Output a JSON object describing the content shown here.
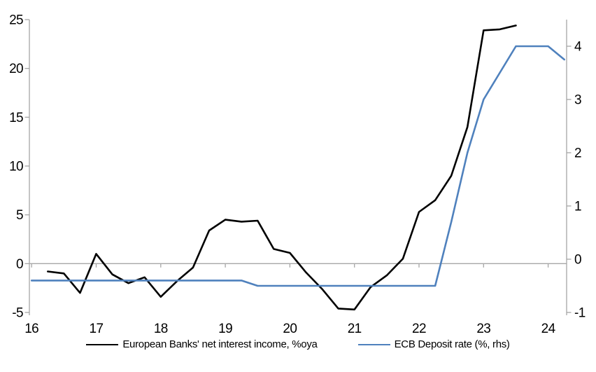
{
  "chart_data": {
    "type": "line",
    "title": "",
    "grid": false,
    "legend_position": "bottom",
    "axis_color": "#a6a6a6",
    "zero_line": true,
    "x_axis": {
      "tick_values": [
        16,
        17,
        18,
        19,
        20,
        21,
        22,
        23,
        24
      ],
      "tick_labels": [
        "16",
        "17",
        "18",
        "19",
        "20",
        "21",
        "22",
        "23",
        "24"
      ],
      "min": 16,
      "max": 24.3
    },
    "left_axis": {
      "tick_values": [
        25,
        20,
        15,
        10,
        5,
        0,
        -5
      ],
      "tick_labels": [
        "25",
        "20",
        "15",
        "10",
        "5",
        "0",
        "-5"
      ],
      "min": -5,
      "max": 25
    },
    "right_axis": {
      "tick_values": [
        4,
        3,
        2,
        1,
        0,
        -1
      ],
      "tick_labels": [
        "4",
        "3",
        "2",
        "1",
        "0",
        "-1"
      ],
      "min": -1,
      "max": 4.5
    },
    "series": [
      {
        "name": "European Banks' net interest income, %oya",
        "axis": "left",
        "color": "#000000",
        "x": [
          16.25,
          16.5,
          16.75,
          17,
          17.25,
          17.5,
          17.75,
          18,
          18.25,
          18.5,
          18.75,
          19,
          19.25,
          19.5,
          19.75,
          20,
          20.25,
          20.5,
          20.75,
          21,
          21.25,
          21.5,
          21.75,
          22,
          22.25,
          22.5,
          22.75,
          23,
          23.25,
          23.5
        ],
        "values": [
          -0.8,
          -1.0,
          -3.0,
          1.0,
          -1.1,
          -2.0,
          -1.4,
          -3.4,
          -1.8,
          -0.4,
          3.4,
          4.5,
          4.3,
          4.4,
          1.5,
          1.1,
          -0.9,
          -2.6,
          -4.6,
          -4.7,
          -2.4,
          -1.2,
          0.5,
          5.3,
          6.5,
          9.0,
          14.0,
          23.9,
          24.0,
          24.4
        ]
      },
      {
        "name": "ECB Deposit rate (%, rhs)",
        "axis": "right",
        "color": "#4f81bd",
        "x": [
          16,
          16.25,
          16.5,
          16.75,
          17,
          17.25,
          17.5,
          17.75,
          18,
          18.25,
          18.5,
          18.75,
          19,
          19.25,
          19.5,
          19.75,
          20,
          20.25,
          20.5,
          20.75,
          21,
          21.25,
          21.5,
          21.75,
          22,
          22.25,
          22.5,
          22.75,
          23,
          23.25,
          23.5,
          23.75,
          24,
          24.25
        ],
        "values": [
          -0.4,
          -0.4,
          -0.4,
          -0.4,
          -0.4,
          -0.4,
          -0.4,
          -0.4,
          -0.4,
          -0.4,
          -0.4,
          -0.4,
          -0.4,
          -0.4,
          -0.5,
          -0.5,
          -0.5,
          -0.5,
          -0.5,
          -0.5,
          -0.5,
          -0.5,
          -0.5,
          -0.5,
          -0.5,
          -0.5,
          0.7,
          2.0,
          3.0,
          3.5,
          4.0,
          4.0,
          4.0,
          3.75
        ]
      }
    ]
  },
  "legend": {
    "items": [
      {
        "label": "European Banks' net interest income, %oya"
      },
      {
        "label": "ECB Deposit rate (%, rhs)"
      }
    ]
  }
}
